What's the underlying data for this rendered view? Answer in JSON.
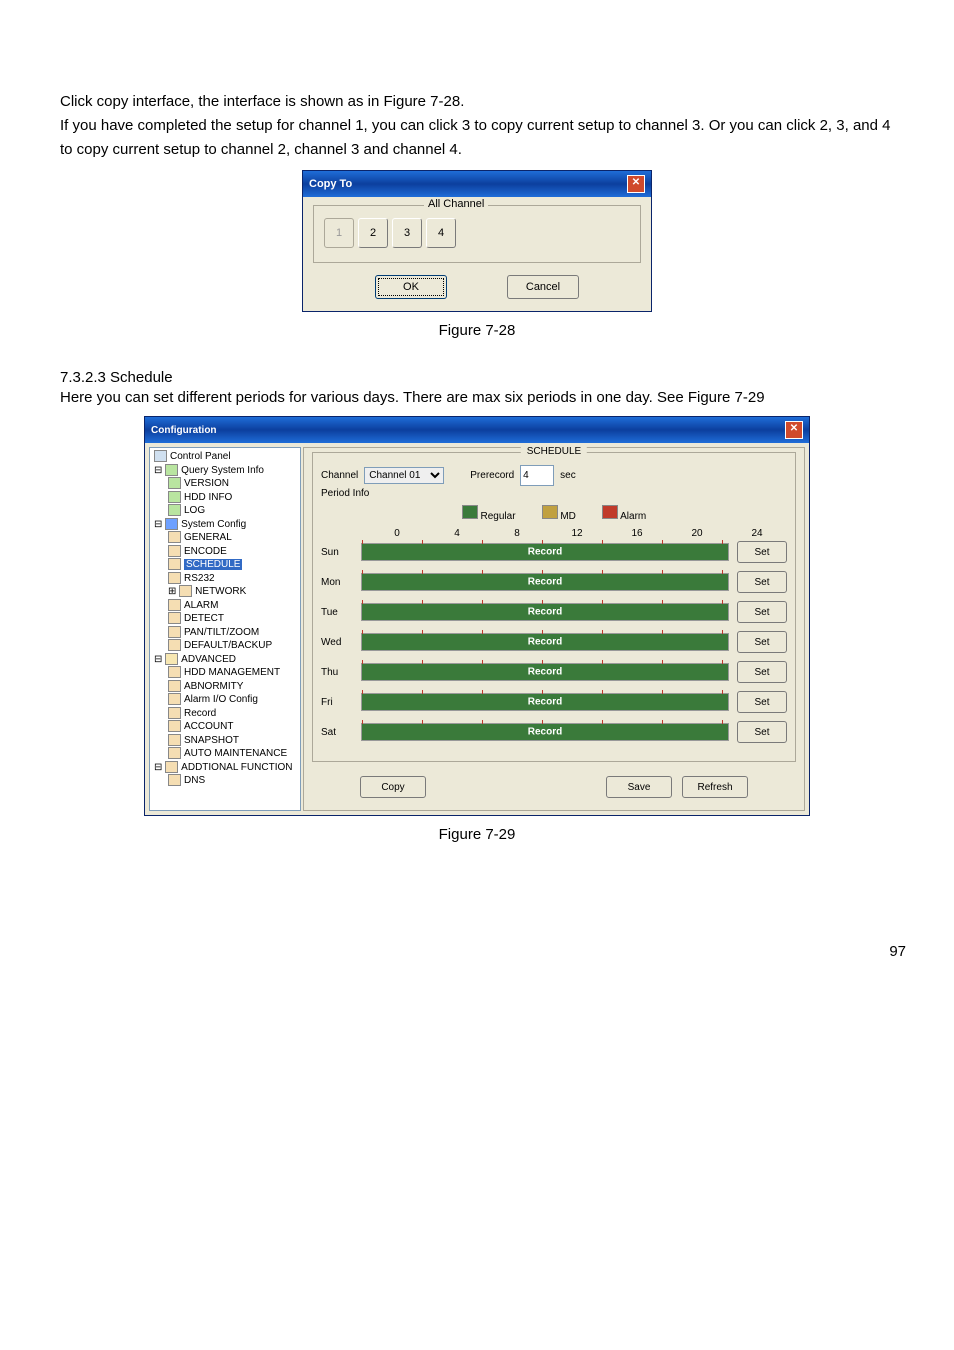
{
  "intro": {
    "p1": "Click copy interface, the interface is shown as in Figure 7-28.",
    "p2": "If you have completed the setup for channel 1, you can click 3 to copy current setup to channel 3. Or you can click 2, 3, and 4 to copy current setup to channel 2, channel 3 and channel 4."
  },
  "copyto": {
    "title": "Copy To",
    "close": "✕",
    "legend": "All Channel",
    "channels": [
      {
        "n": "1",
        "sel": false
      },
      {
        "n": "2",
        "sel": true
      },
      {
        "n": "3",
        "sel": true
      },
      {
        "n": "4",
        "sel": true
      }
    ],
    "ok": "OK",
    "cancel": "Cancel"
  },
  "caption1": "Figure 7-28",
  "sched": {
    "heading_num": "7.3.2.3  Schedule",
    "heading_text": "Here you can set different periods for various days. There are max six periods in one day. See Figure 7-29",
    "title": "Configuration",
    "close": "✕",
    "tree": {
      "controlPanel": "Control Panel",
      "querySystemInfo": "Query System Info",
      "version": "VERSION",
      "hddInfo": "HDD INFO",
      "log": "LOG",
      "systemConfig": "System Config",
      "general": "GENERAL",
      "encode": "ENCODE",
      "schedule": "SCHEDULE",
      "rs232": "RS232",
      "network": "NETWORK",
      "alarm": "ALARM",
      "detect": "DETECT",
      "ptz": "PAN/TILT/ZOOM",
      "defbackup": "DEFAULT/BACKUP",
      "advanced": "ADVANCED",
      "hddMgmt": "HDD MANAGEMENT",
      "abnormity": "ABNORMITY",
      "alarmIoCfg": "Alarm I/O Config",
      "record": "Record",
      "account": "ACCOUNT",
      "snapshot": "SNAPSHOT",
      "autoMaint": "AUTO MAINTENANCE",
      "addFunc": "ADDTIONAL FUNCTION",
      "dns": "DNS"
    },
    "panel": {
      "legend": "SCHEDULE",
      "channelLabel": "Channel",
      "channelValue": "Channel 01",
      "prerecord": "Prerecord",
      "prerecordValue": "4",
      "secLabel": "sec",
      "periodInfo": "Period Info",
      "regular": "Regular",
      "md": "MD",
      "alarm": "Alarm",
      "ticks": [
        "0",
        "4",
        "8",
        "12",
        "16",
        "20",
        "24"
      ],
      "days": [
        {
          "name": "Sun",
          "text": "Record"
        },
        {
          "name": "Mon",
          "text": "Record"
        },
        {
          "name": "Tue",
          "text": "Record"
        },
        {
          "name": "Wed",
          "text": "Record"
        },
        {
          "name": "Thu",
          "text": "Record"
        },
        {
          "name": "Fri",
          "text": "Record"
        },
        {
          "name": "Sat",
          "text": "Record"
        }
      ],
      "setBtn": "Set",
      "copyBtn": "Copy",
      "saveBtn": "Save",
      "refreshBtn": "Refresh"
    }
  },
  "caption2": "Figure 7-29",
  "pageNum": "97"
}
